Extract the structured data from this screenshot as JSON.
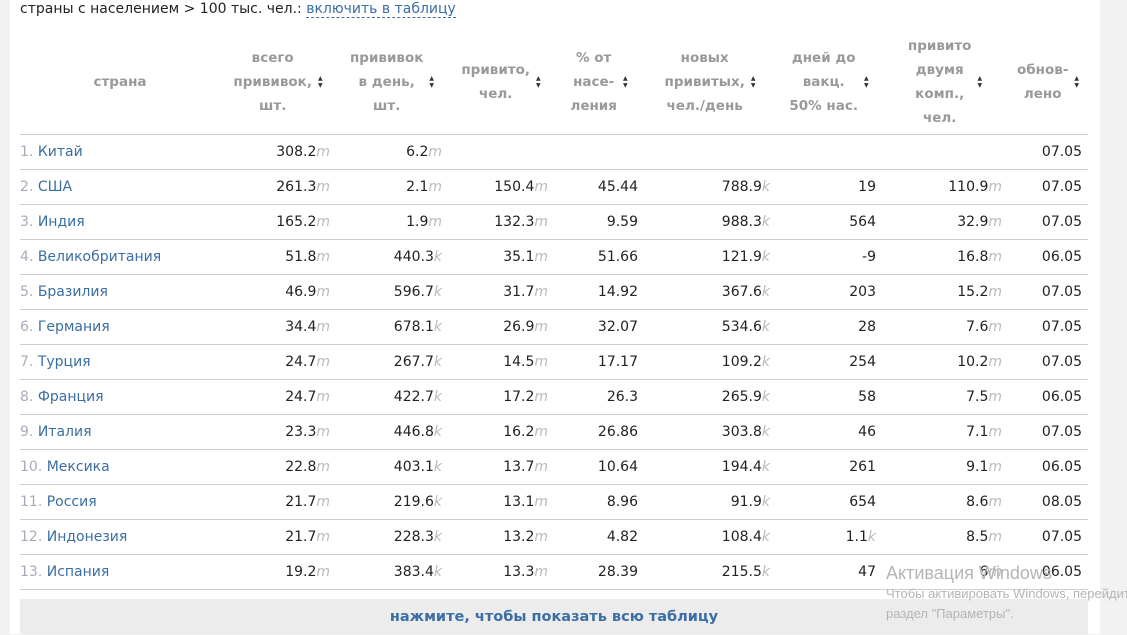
{
  "top_note": {
    "text": "страны с населением > 100 тыс. чел.: ",
    "link": "включить в таблицу"
  },
  "headers": [
    {
      "lines": [
        "страна"
      ]
    },
    {
      "lines": [
        "всего",
        "прививок,",
        "шт."
      ]
    },
    {
      "lines": [
        "прививок",
        "в день,",
        "шт."
      ]
    },
    {
      "lines": [
        "привито,",
        "чел."
      ]
    },
    {
      "lines": [
        "% от",
        "насе-",
        "ления"
      ]
    },
    {
      "lines": [
        "новых",
        "привитых,",
        "чел./день"
      ]
    },
    {
      "lines": [
        "дней до",
        "вакц.",
        "50% нас."
      ]
    },
    {
      "lines": [
        "привито",
        "двумя",
        "комп.,",
        "чел."
      ]
    },
    {
      "lines": [
        "обнов-",
        "лено"
      ]
    }
  ],
  "rows": [
    {
      "rank": "1.",
      "country": "Китай",
      "total": "308.2",
      "total_u": "m",
      "daily": "6.2",
      "daily_u": "m",
      "vacc": "",
      "vacc_u": "",
      "pct": "",
      "new": "",
      "new_u": "",
      "days": "",
      "days_u": "",
      "two": "",
      "two_u": "",
      "upd": "07.05"
    },
    {
      "rank": "2.",
      "country": "США",
      "total": "261.3",
      "total_u": "m",
      "daily": "2.1",
      "daily_u": "m",
      "vacc": "150.4",
      "vacc_u": "m",
      "pct": "45.44",
      "new": "788.9",
      "new_u": "k",
      "days": "19",
      "days_u": "",
      "two": "110.9",
      "two_u": "m",
      "upd": "07.05"
    },
    {
      "rank": "3.",
      "country": "Индия",
      "total": "165.2",
      "total_u": "m",
      "daily": "1.9",
      "daily_u": "m",
      "vacc": "132.3",
      "vacc_u": "m",
      "pct": "9.59",
      "new": "988.3",
      "new_u": "k",
      "days": "564",
      "days_u": "",
      "two": "32.9",
      "two_u": "m",
      "upd": "07.05"
    },
    {
      "rank": "4.",
      "country": "Великобритания",
      "total": "51.8",
      "total_u": "m",
      "daily": "440.3",
      "daily_u": "k",
      "vacc": "35.1",
      "vacc_u": "m",
      "pct": "51.66",
      "new": "121.9",
      "new_u": "k",
      "days": "-9",
      "days_u": "",
      "two": "16.8",
      "two_u": "m",
      "upd": "06.05"
    },
    {
      "rank": "5.",
      "country": "Бразилия",
      "total": "46.9",
      "total_u": "m",
      "daily": "596.7",
      "daily_u": "k",
      "vacc": "31.7",
      "vacc_u": "m",
      "pct": "14.92",
      "new": "367.6",
      "new_u": "k",
      "days": "203",
      "days_u": "",
      "two": "15.2",
      "two_u": "m",
      "upd": "07.05"
    },
    {
      "rank": "6.",
      "country": "Германия",
      "total": "34.4",
      "total_u": "m",
      "daily": "678.1",
      "daily_u": "k",
      "vacc": "26.9",
      "vacc_u": "m",
      "pct": "32.07",
      "new": "534.6",
      "new_u": "k",
      "days": "28",
      "days_u": "",
      "two": "7.6",
      "two_u": "m",
      "upd": "07.05"
    },
    {
      "rank": "7.",
      "country": "Турция",
      "total": "24.7",
      "total_u": "m",
      "daily": "267.7",
      "daily_u": "k",
      "vacc": "14.5",
      "vacc_u": "m",
      "pct": "17.17",
      "new": "109.2",
      "new_u": "k",
      "days": "254",
      "days_u": "",
      "two": "10.2",
      "two_u": "m",
      "upd": "07.05"
    },
    {
      "rank": "8.",
      "country": "Франция",
      "total": "24.7",
      "total_u": "m",
      "daily": "422.7",
      "daily_u": "k",
      "vacc": "17.2",
      "vacc_u": "m",
      "pct": "26.3",
      "new": "265.9",
      "new_u": "k",
      "days": "58",
      "days_u": "",
      "two": "7.5",
      "two_u": "m",
      "upd": "06.05"
    },
    {
      "rank": "9.",
      "country": "Италия",
      "total": "23.3",
      "total_u": "m",
      "daily": "446.8",
      "daily_u": "k",
      "vacc": "16.2",
      "vacc_u": "m",
      "pct": "26.86",
      "new": "303.8",
      "new_u": "k",
      "days": "46",
      "days_u": "",
      "two": "7.1",
      "two_u": "m",
      "upd": "07.05"
    },
    {
      "rank": "10.",
      "country": "Мексика",
      "total": "22.8",
      "total_u": "m",
      "daily": "403.1",
      "daily_u": "k",
      "vacc": "13.7",
      "vacc_u": "m",
      "pct": "10.64",
      "new": "194.4",
      "new_u": "k",
      "days": "261",
      "days_u": "",
      "two": "9.1",
      "two_u": "m",
      "upd": "06.05"
    },
    {
      "rank": "11.",
      "country": "Россия",
      "total": "21.7",
      "total_u": "m",
      "daily": "219.6",
      "daily_u": "k",
      "vacc": "13.1",
      "vacc_u": "m",
      "pct": "8.96",
      "new": "91.9",
      "new_u": "k",
      "days": "654",
      "days_u": "",
      "two": "8.6",
      "two_u": "m",
      "upd": "08.05"
    },
    {
      "rank": "12.",
      "country": "Индонезия",
      "total": "21.7",
      "total_u": "m",
      "daily": "228.3",
      "daily_u": "k",
      "vacc": "13.2",
      "vacc_u": "m",
      "pct": "4.82",
      "new": "108.4",
      "new_u": "k",
      "days": "1.1",
      "days_u": "k",
      "two": "8.5",
      "two_u": "m",
      "upd": "07.05"
    },
    {
      "rank": "13.",
      "country": "Испания",
      "total": "19.2",
      "total_u": "m",
      "daily": "383.4",
      "daily_u": "k",
      "vacc": "13.3",
      "vacc_u": "m",
      "pct": "28.39",
      "new": "215.5",
      "new_u": "k",
      "days": "47",
      "days_u": "",
      "two": "6",
      "two_u": "m",
      "upd": "06.05"
    }
  ],
  "footer": {
    "show_all": "нажмите, чтобы показать всю таблицу"
  },
  "watermark": {
    "title": "Активация Windows",
    "line2": "Чтобы активировать Windows, перейдите в",
    "line3": "раздел \"Параметры\"."
  },
  "colors": {
    "link": "#3a6ea5",
    "header_text": "#999999",
    "unit": "#bbbbbb",
    "footer_bg": "#ececec"
  }
}
